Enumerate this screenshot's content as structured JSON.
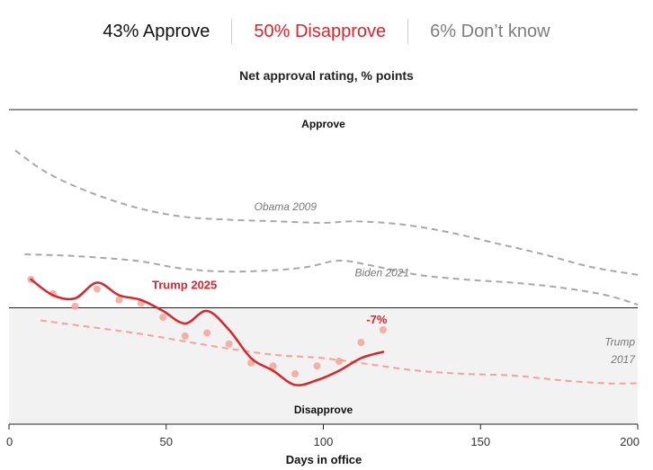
{
  "summary": {
    "approve": "43% Approve",
    "disapprove": "50% Disapprove",
    "dont_know": "6% Don’t know"
  },
  "colors": {
    "trump2025": "#d9262c",
    "trump2017": "#f4a39a",
    "others": "#a8a8a8",
    "disapprove_zone": "#f2f2f2"
  },
  "chart_data": {
    "type": "line",
    "title": "Net approval rating, % points",
    "xlabel": "Days in office",
    "ylabel": "",
    "xlim": [
      0,
      200
    ],
    "ylim": [
      -37,
      63
    ],
    "x_ticks": [
      0,
      50,
      100,
      150,
      200
    ],
    "zone_labels": {
      "top": "Approve",
      "bottom": "Disapprove"
    },
    "series": [
      {
        "name": "Obama 2009",
        "style": "dashed",
        "x": [
          2,
          12,
          25,
          40,
          55,
          70,
          85,
          100,
          110,
          125,
          140,
          155,
          170,
          185,
          200
        ],
        "y": [
          50,
          43,
          37,
          32,
          29,
          28,
          27.5,
          27,
          27.5,
          26.5,
          24,
          20.5,
          17,
          13,
          10.5
        ]
      },
      {
        "name": "Biden 2021",
        "style": "dashed",
        "x": [
          5,
          20,
          40,
          55,
          70,
          85,
          95,
          105,
          115,
          130,
          145,
          160,
          175,
          190,
          200
        ],
        "y": [
          17,
          16.5,
          15,
          12.5,
          11.5,
          12,
          13,
          15,
          13.5,
          10.5,
          9,
          8,
          6.5,
          4,
          1
        ]
      },
      {
        "name": "Trump 2017",
        "style": "dashed",
        "x": [
          10,
          25,
          40,
          55,
          70,
          85,
          100,
          115,
          130,
          145,
          160,
          175,
          190,
          200
        ],
        "y": [
          -4,
          -6,
          -8,
          -10.5,
          -13,
          -15,
          -16,
          -18,
          -20,
          -21,
          -21.5,
          -23,
          -24,
          -24
        ]
      },
      {
        "name": "Trump 2025",
        "style": "solid",
        "label": "Trump 2025",
        "end_label": "-7%",
        "x": [
          7,
          14,
          21,
          28,
          35,
          42,
          49,
          56,
          63,
          70,
          77,
          84,
          91,
          98,
          105,
          112,
          119
        ],
        "y": [
          9,
          4.5,
          0.5,
          6,
          2.5,
          1.5,
          -3,
          -9,
          -8,
          -11.5,
          -17.5,
          -18.5,
          -21,
          -18.5,
          -17,
          -11,
          -7
        ],
        "smooth_y": [
          9,
          4,
          3,
          8,
          4,
          2.5,
          -1,
          -5,
          -1,
          -7,
          -16,
          -20,
          -24.5,
          -23,
          -20,
          -16,
          -14
        ]
      }
    ]
  }
}
